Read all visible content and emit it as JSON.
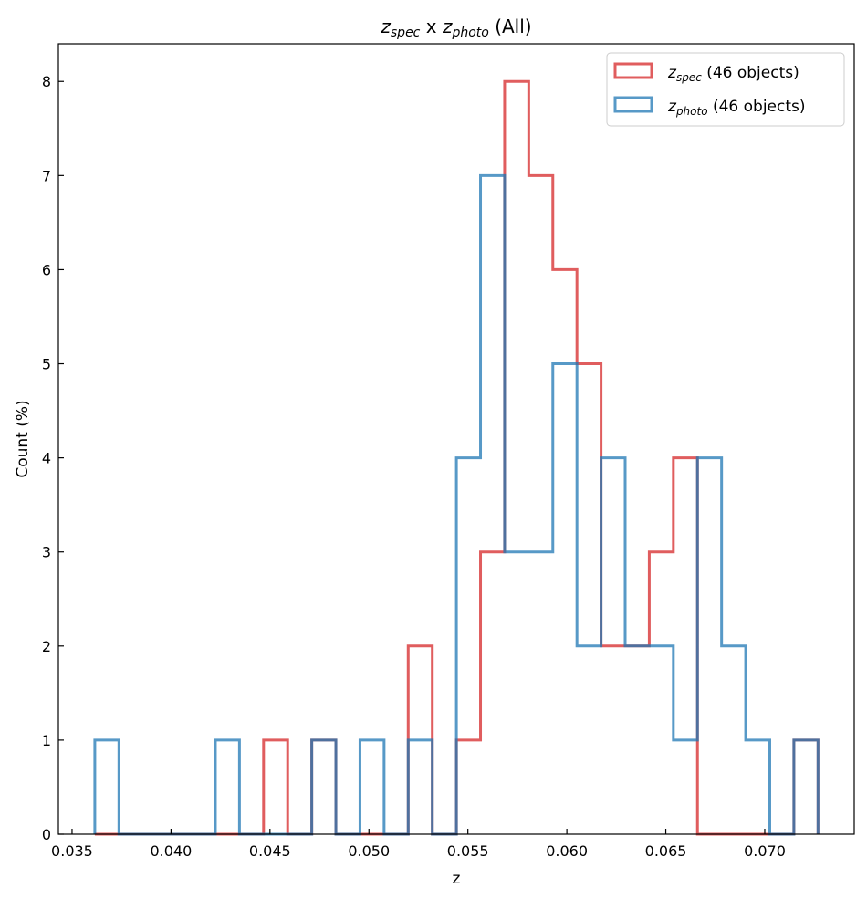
{
  "chart_data": {
    "type": "histogram-step",
    "title": {
      "var1": "z",
      "sub1": "spec",
      "mid": " x ",
      "var2": "z",
      "sub2": "photo",
      "end": " (All)"
    },
    "xlabel": "z",
    "ylabel": "Count (%)",
    "xlim": [
      0.03431,
      0.07452
    ],
    "ylim": [
      0,
      8.4
    ],
    "xticks": [
      "0.035",
      "0.040",
      "0.045",
      "0.050",
      "0.055",
      "0.060",
      "0.065",
      "0.070"
    ],
    "xtick_values": [
      0.035,
      0.04,
      0.045,
      0.05,
      0.055,
      0.06,
      0.065,
      0.07
    ],
    "yticks": [
      "0",
      "1",
      "2",
      "3",
      "4",
      "5",
      "6",
      "7",
      "8"
    ],
    "bin_start": 0.03615,
    "bin_width": 0.001218,
    "legend_position": "top-right",
    "series": [
      {
        "name": "z_spec",
        "var": "z",
        "sub": "spec",
        "suffix": " (46 objects)",
        "color": "#d62728",
        "values": [
          0,
          0,
          0,
          0,
          0,
          0,
          0,
          1,
          0,
          1,
          0,
          0,
          0,
          2,
          0,
          1,
          3,
          8,
          7,
          6,
          5,
          2,
          2,
          3,
          4,
          0,
          0,
          0,
          0,
          1
        ]
      },
      {
        "name": "z_photo",
        "var": "z",
        "sub": "photo",
        "suffix": " (46 objects)",
        "color": "#1f77b4",
        "values": [
          1,
          0,
          0,
          0,
          0,
          1,
          0,
          0,
          0,
          1,
          0,
          1,
          0,
          1,
          0,
          4,
          7,
          3,
          3,
          5,
          2,
          4,
          2,
          2,
          1,
          4,
          2,
          1,
          0,
          1
        ]
      }
    ]
  }
}
